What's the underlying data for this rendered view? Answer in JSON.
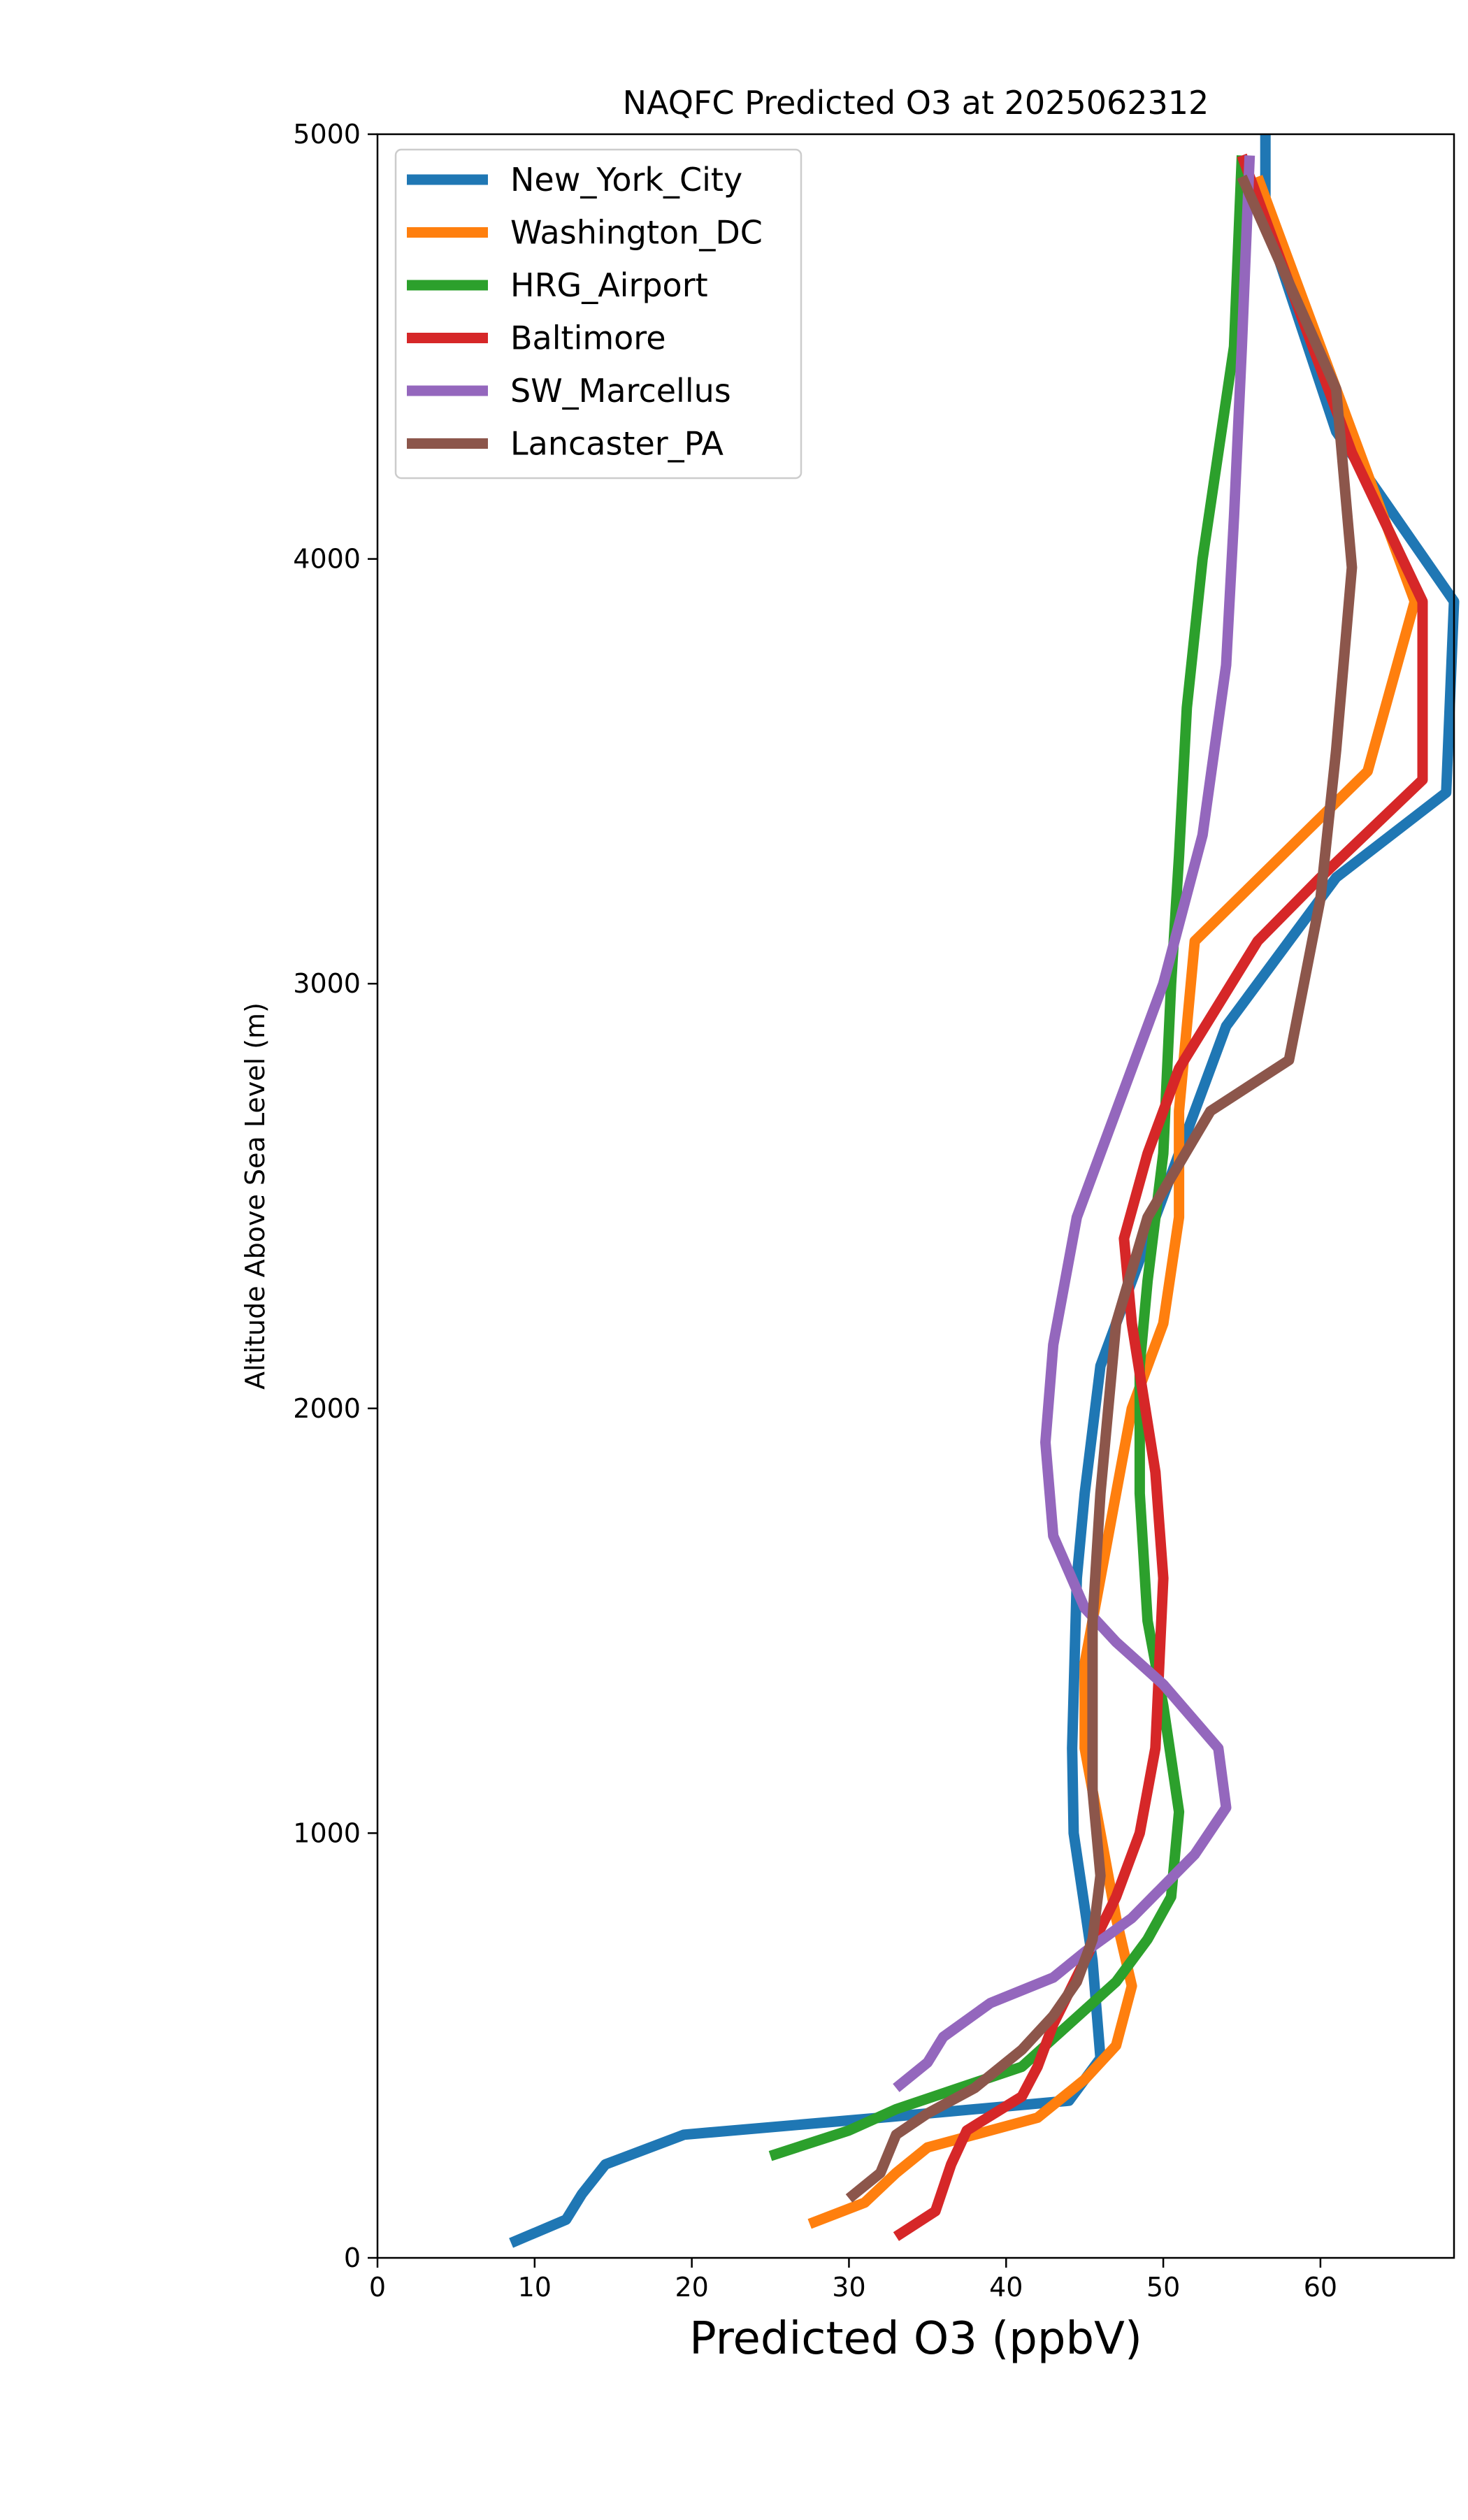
{
  "chart_data": {
    "type": "line",
    "title": "NAQFC Predicted O3 at 2025062312",
    "xlabel": "Predicted O3 (ppbV)",
    "ylabel": "Altitude Above Sea Level (m)",
    "xlim": [
      0,
      68.5
    ],
    "ylim": [
      0,
      5000
    ],
    "xticks": [
      0,
      10,
      20,
      30,
      40,
      50,
      60
    ],
    "xtick_labels": [
      "0",
      "10",
      "20",
      "30",
      "40",
      "50",
      "60"
    ],
    "yticks": [
      0,
      1000,
      2000,
      3000,
      4000,
      5000
    ],
    "ytick_labels": [
      "0",
      "1000",
      "2000",
      "3000",
      "4000",
      "5000"
    ],
    "grid": false,
    "legend_position": "top-left",
    "series": [
      {
        "name": "New_York_City",
        "color": "#1f77b4",
        "points": [
          [
            8.5,
            35
          ],
          [
            12,
            90
          ],
          [
            13,
            150
          ],
          [
            14.5,
            220
          ],
          [
            19.5,
            290
          ],
          [
            32,
            330
          ],
          [
            44,
            370
          ],
          [
            46,
            470
          ],
          [
            45.5,
            700
          ],
          [
            44.3,
            1000
          ],
          [
            44.2,
            1200
          ],
          [
            44.5,
            1600
          ],
          [
            45,
            1800
          ],
          [
            46,
            2100
          ],
          [
            48,
            2300
          ],
          [
            50,
            2500
          ],
          [
            52,
            2700
          ],
          [
            54,
            2900
          ],
          [
            58,
            3100
          ],
          [
            61,
            3250
          ],
          [
            68,
            3450
          ],
          [
            68.5,
            3900
          ],
          [
            61,
            4300
          ],
          [
            56.5,
            4800
          ],
          [
            56.5,
            5000
          ]
        ]
      },
      {
        "name": "Washington_DC",
        "color": "#ff7f0e",
        "points": [
          [
            27.5,
            80
          ],
          [
            31,
            130
          ],
          [
            33,
            200
          ],
          [
            35,
            260
          ],
          [
            42,
            330
          ],
          [
            45,
            420
          ],
          [
            47,
            500
          ],
          [
            48,
            640
          ],
          [
            47,
            800
          ],
          [
            46,
            1000
          ],
          [
            45,
            1200
          ],
          [
            45,
            1400
          ],
          [
            46,
            1600
          ],
          [
            47,
            1800
          ],
          [
            48,
            2000
          ],
          [
            50,
            2200
          ],
          [
            51,
            2450
          ],
          [
            51,
            2700
          ],
          [
            52,
            3100
          ],
          [
            63,
            3500
          ],
          [
            66,
            3900
          ],
          [
            62,
            4300
          ],
          [
            56,
            4900
          ]
        ]
      },
      {
        "name": "HRG_Airport",
        "color": "#2ca02c",
        "points": [
          [
            25,
            240
          ],
          [
            30,
            300
          ],
          [
            33,
            350
          ],
          [
            37,
            400
          ],
          [
            41,
            450
          ],
          [
            44,
            550
          ],
          [
            47,
            650
          ],
          [
            49,
            750
          ],
          [
            50.5,
            850
          ],
          [
            51,
            1050
          ],
          [
            50,
            1300
          ],
          [
            49,
            1500
          ],
          [
            48.5,
            1800
          ],
          [
            48.5,
            2100
          ],
          [
            49,
            2300
          ],
          [
            50,
            2600
          ],
          [
            50.5,
            3000
          ],
          [
            51,
            3300
          ],
          [
            51.5,
            3650
          ],
          [
            52.5,
            4000
          ],
          [
            54.5,
            4500
          ],
          [
            55,
            4950
          ]
        ]
      },
      {
        "name": "Baltimore",
        "color": "#d62728",
        "points": [
          [
            33,
            50
          ],
          [
            35.5,
            110
          ],
          [
            36.5,
            220
          ],
          [
            37.5,
            300
          ],
          [
            41,
            380
          ],
          [
            42,
            450
          ],
          [
            43,
            550
          ],
          [
            45,
            700
          ],
          [
            47,
            850
          ],
          [
            48.5,
            1000
          ],
          [
            49.5,
            1200
          ],
          [
            50,
            1600
          ],
          [
            49.5,
            1850
          ],
          [
            48,
            2200
          ],
          [
            47.5,
            2400
          ],
          [
            49,
            2600
          ],
          [
            51,
            2800
          ],
          [
            56,
            3100
          ],
          [
            60,
            3250
          ],
          [
            66.5,
            3480
          ],
          [
            66.5,
            3900
          ],
          [
            62,
            4250
          ],
          [
            55,
            4950
          ]
        ]
      },
      {
        "name": "SW_Marcellus",
        "color": "#9467bd",
        "points": [
          [
            33,
            400
          ],
          [
            35,
            460
          ],
          [
            36,
            520
          ],
          [
            39,
            600
          ],
          [
            43,
            660
          ],
          [
            45,
            720
          ],
          [
            48,
            800
          ],
          [
            52,
            950
          ],
          [
            54,
            1060
          ],
          [
            53.5,
            1200
          ],
          [
            50,
            1350
          ],
          [
            47,
            1450
          ],
          [
            45,
            1530
          ],
          [
            43,
            1700
          ],
          [
            42.5,
            1920
          ],
          [
            43,
            2150
          ],
          [
            44.5,
            2450
          ],
          [
            47,
            2700
          ],
          [
            50,
            3000
          ],
          [
            52.5,
            3350
          ],
          [
            54,
            3750
          ],
          [
            54.5,
            4100
          ],
          [
            55,
            4500
          ],
          [
            55.5,
            4950
          ]
        ]
      },
      {
        "name": "Lancaster_PA",
        "color": "#8c564b",
        "points": [
          [
            30,
            140
          ],
          [
            32,
            200
          ],
          [
            33,
            290
          ],
          [
            35,
            340
          ],
          [
            38,
            400
          ],
          [
            41,
            490
          ],
          [
            43,
            570
          ],
          [
            44.5,
            650
          ],
          [
            45.5,
            750
          ],
          [
            46,
            900
          ],
          [
            45.5,
            1100
          ],
          [
            45.5,
            1300
          ],
          [
            45.5,
            1500
          ],
          [
            46,
            1800
          ],
          [
            46.5,
            2000
          ],
          [
            47,
            2200
          ],
          [
            49,
            2450
          ],
          [
            53,
            2700
          ],
          [
            58,
            2820
          ],
          [
            60,
            3200
          ],
          [
            61,
            3550
          ],
          [
            62,
            3980
          ],
          [
            61,
            4400
          ],
          [
            55,
            4900
          ]
        ]
      }
    ]
  }
}
